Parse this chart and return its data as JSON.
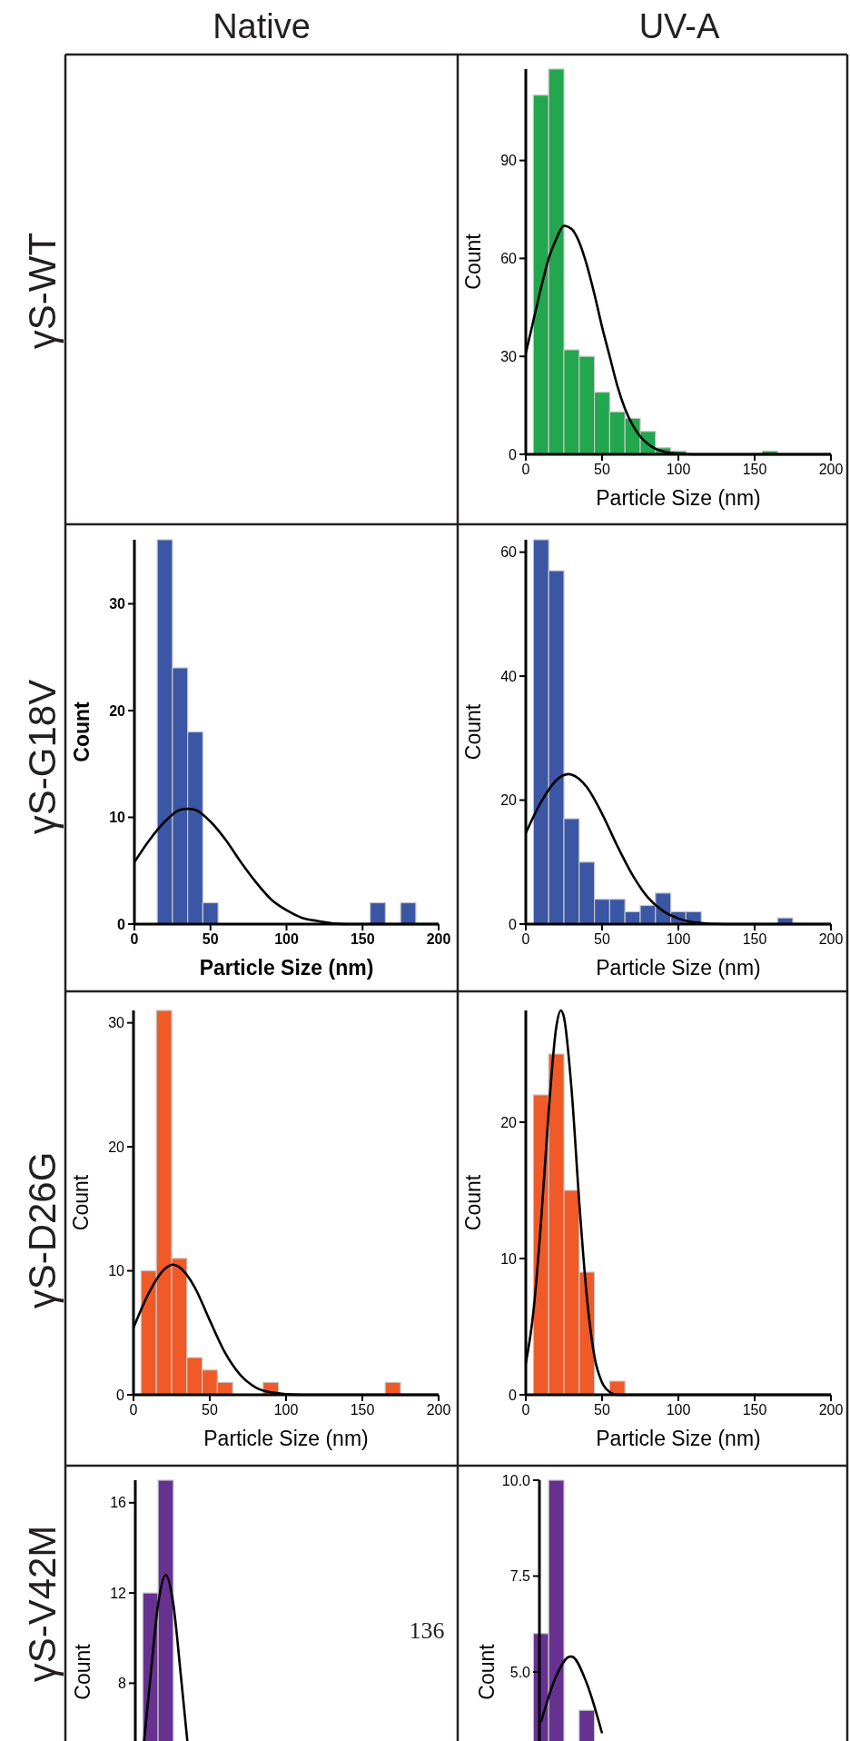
{
  "chart_data": [
    {
      "type": "other",
      "annotations": [
        "Native",
        "UV-A",
        "γS-WT",
        "γS-G18V",
        "γS-D26G",
        "γS-V42M",
        "136"
      ]
    },
    {
      "type": "histogram",
      "xlabel": "Particle Size (nm)",
      "ylabel": "Count",
      "xlim": [
        0,
        200
      ],
      "xticks": [
        0,
        50,
        100,
        150,
        200
      ],
      "ylim": [
        0,
        118
      ],
      "yticks": [
        0,
        30,
        60,
        90
      ],
      "series": [
        {
          "type": "histogram",
          "color": "#22a64e",
          "bins": [
            5,
            15,
            25,
            35,
            45,
            55,
            65,
            75,
            85,
            95,
            105,
            115,
            125,
            135,
            145,
            155,
            165
          ],
          "values": [
            110,
            118,
            32,
            30,
            19,
            13,
            11,
            7,
            2,
            1,
            0,
            0,
            0,
            0,
            0,
            1
          ]
        },
        {
          "type": "line",
          "color": "#000000",
          "x": [
            0,
            5,
            10,
            15,
            20,
            25,
            30,
            35,
            40,
            45,
            50,
            55,
            60,
            65,
            70,
            75,
            80,
            85,
            90,
            100,
            110,
            200
          ],
          "values": [
            31,
            41,
            51,
            60,
            66,
            70,
            69,
            65,
            58,
            49,
            39,
            30,
            21,
            14,
            9,
            5.5,
            3.2,
            1.7,
            0.9,
            0.2,
            0,
            0
          ]
        }
      ]
    },
    {
      "type": "histogram",
      "xlabel": "Particle Size (nm)",
      "ylabel": "Count",
      "xlim": [
        0,
        200
      ],
      "xticks": [
        0,
        50,
        100,
        150,
        200
      ],
      "ylim": [
        0,
        36
      ],
      "yticks": [
        0,
        10,
        20,
        30
      ],
      "series": [
        {
          "type": "histogram",
          "color": "#3a56a5",
          "bins": [
            15,
            25,
            35,
            45,
            55,
            65,
            75,
            85,
            95,
            105,
            115,
            125,
            135,
            145,
            155,
            165,
            175,
            185
          ],
          "values": [
            36,
            24,
            18,
            2,
            0,
            0,
            0,
            0,
            0,
            0,
            0,
            0,
            0,
            0,
            2,
            0,
            2
          ]
        },
        {
          "type": "line",
          "color": "#000000",
          "x": [
            0,
            10,
            20,
            30,
            35,
            40,
            50,
            60,
            70,
            80,
            90,
            100,
            110,
            120,
            140,
            200
          ],
          "values": [
            5.8,
            7.9,
            9.6,
            10.7,
            10.8,
            10.7,
            9.6,
            7.9,
            5.8,
            3.9,
            2.3,
            1.3,
            0.6,
            0.3,
            0,
            0
          ]
        }
      ]
    },
    {
      "type": "histogram",
      "xlabel": "Particle Size (nm)",
      "ylabel": "Count",
      "xlim": [
        0,
        200
      ],
      "xticks": [
        0,
        50,
        100,
        150,
        200
      ],
      "ylim": [
        0,
        62
      ],
      "yticks": [
        0,
        20,
        40,
        60
      ],
      "series": [
        {
          "type": "histogram",
          "color": "#3a56a5",
          "bins": [
            5,
            15,
            25,
            35,
            45,
            55,
            65,
            75,
            85,
            95,
            105,
            115,
            125,
            135,
            145,
            155,
            165,
            175
          ],
          "values": [
            62,
            57,
            17,
            10,
            4,
            4,
            2,
            3,
            5,
            2,
            2,
            0,
            0,
            0,
            0,
            0,
            1
          ]
        },
        {
          "type": "line",
          "color": "#000000",
          "x": [
            0,
            10,
            20,
            28,
            30,
            40,
            50,
            60,
            70,
            80,
            90,
            100,
            110,
            130,
            200
          ],
          "values": [
            14.7,
            19.7,
            23.2,
            24.2,
            24.1,
            22.1,
            17.8,
            12.6,
            7.9,
            4.3,
            2.1,
            0.9,
            0.3,
            0,
            0
          ]
        }
      ]
    },
    {
      "type": "histogram",
      "xlabel": "Particle Size (nm)",
      "ylabel": "Count",
      "xlim": [
        0,
        200
      ],
      "xticks": [
        0,
        50,
        100,
        150,
        200
      ],
      "ylim": [
        0,
        31
      ],
      "yticks": [
        0,
        10,
        20,
        30
      ],
      "series": [
        {
          "type": "histogram",
          "color": "#f05a28",
          "bins": [
            5,
            15,
            25,
            35,
            45,
            55,
            65,
            75,
            85,
            95,
            105,
            115,
            125,
            135,
            145,
            155,
            165,
            175
          ],
          "values": [
            10,
            31,
            11,
            3,
            2,
            1,
            0,
            0,
            1,
            0,
            0,
            0,
            0,
            0,
            0,
            0,
            1
          ]
        },
        {
          "type": "line",
          "color": "#000000",
          "x": [
            0,
            10,
            20,
            26,
            30,
            40,
            50,
            60,
            70,
            80,
            90,
            110,
            200
          ],
          "values": [
            5.4,
            8.2,
            10.1,
            10.5,
            10.3,
            8.7,
            6.0,
            3.4,
            1.6,
            0.6,
            0.2,
            0,
            0
          ]
        }
      ]
    },
    {
      "type": "histogram",
      "xlabel": "Particle Size (nm)",
      "ylabel": "Count",
      "xlim": [
        0,
        200
      ],
      "xticks": [
        0,
        50,
        100,
        150,
        200
      ],
      "ylim": [
        0,
        28.2
      ],
      "yticks": [
        0,
        10,
        20
      ],
      "series": [
        {
          "type": "histogram",
          "color": "#f05a28",
          "bins": [
            5,
            15,
            25,
            35,
            45,
            55,
            65
          ],
          "values": [
            22,
            25,
            15,
            9,
            0,
            1
          ]
        },
        {
          "type": "line",
          "color": "#000000",
          "x": [
            0,
            5,
            10,
            15,
            20,
            23,
            25,
            30,
            35,
            40,
            45,
            50,
            55,
            60,
            200
          ],
          "values": [
            2.3,
            6.1,
            12.7,
            20.8,
            27.0,
            28.2,
            27.7,
            22.4,
            14.2,
            7.2,
            2.8,
            0.9,
            0.2,
            0,
            0
          ]
        }
      ]
    },
    {
      "type": "histogram",
      "ylabel": "Count",
      "xlim": [
        0,
        200
      ],
      "ylim": [
        0,
        17
      ],
      "yticks": [
        8,
        12,
        16
      ],
      "tick_labels": "y",
      "series": [
        {
          "type": "histogram",
          "color": "#66318f",
          "bins": [
            5,
            15,
            25
          ],
          "values": [
            12,
            17
          ]
        },
        {
          "type": "line",
          "color": "#000000",
          "x": [
            5,
            10,
            15,
            20,
            25,
            30,
            35
          ],
          "values": [
            4.9,
            8.3,
            11.5,
            12.8,
            11.5,
            8.3,
            4.9
          ]
        }
      ]
    },
    {
      "type": "histogram",
      "ylabel": "Count",
      "xlim": [
        0,
        200
      ],
      "ylim": [
        0,
        10
      ],
      "yticks": [
        {
          "value": 5,
          "label": "5.0"
        },
        {
          "value": 7.5,
          "label": "7.5"
        },
        {
          "value": 10,
          "label": "10.0"
        }
      ],
      "tick_labels": "y",
      "series": [
        {
          "type": "histogram",
          "color": "#66318f",
          "bins": [
            5,
            15,
            25,
            35,
            45
          ],
          "values": [
            6,
            10,
            null,
            4
          ]
        },
        {
          "type": "line",
          "color": "#000000",
          "x": [
            10,
            20,
            29,
            30,
            40,
            50
          ],
          "values": [
            3.7,
            4.9,
            5.4,
            5.4,
            4.7,
            3.4
          ]
        }
      ]
    }
  ]
}
